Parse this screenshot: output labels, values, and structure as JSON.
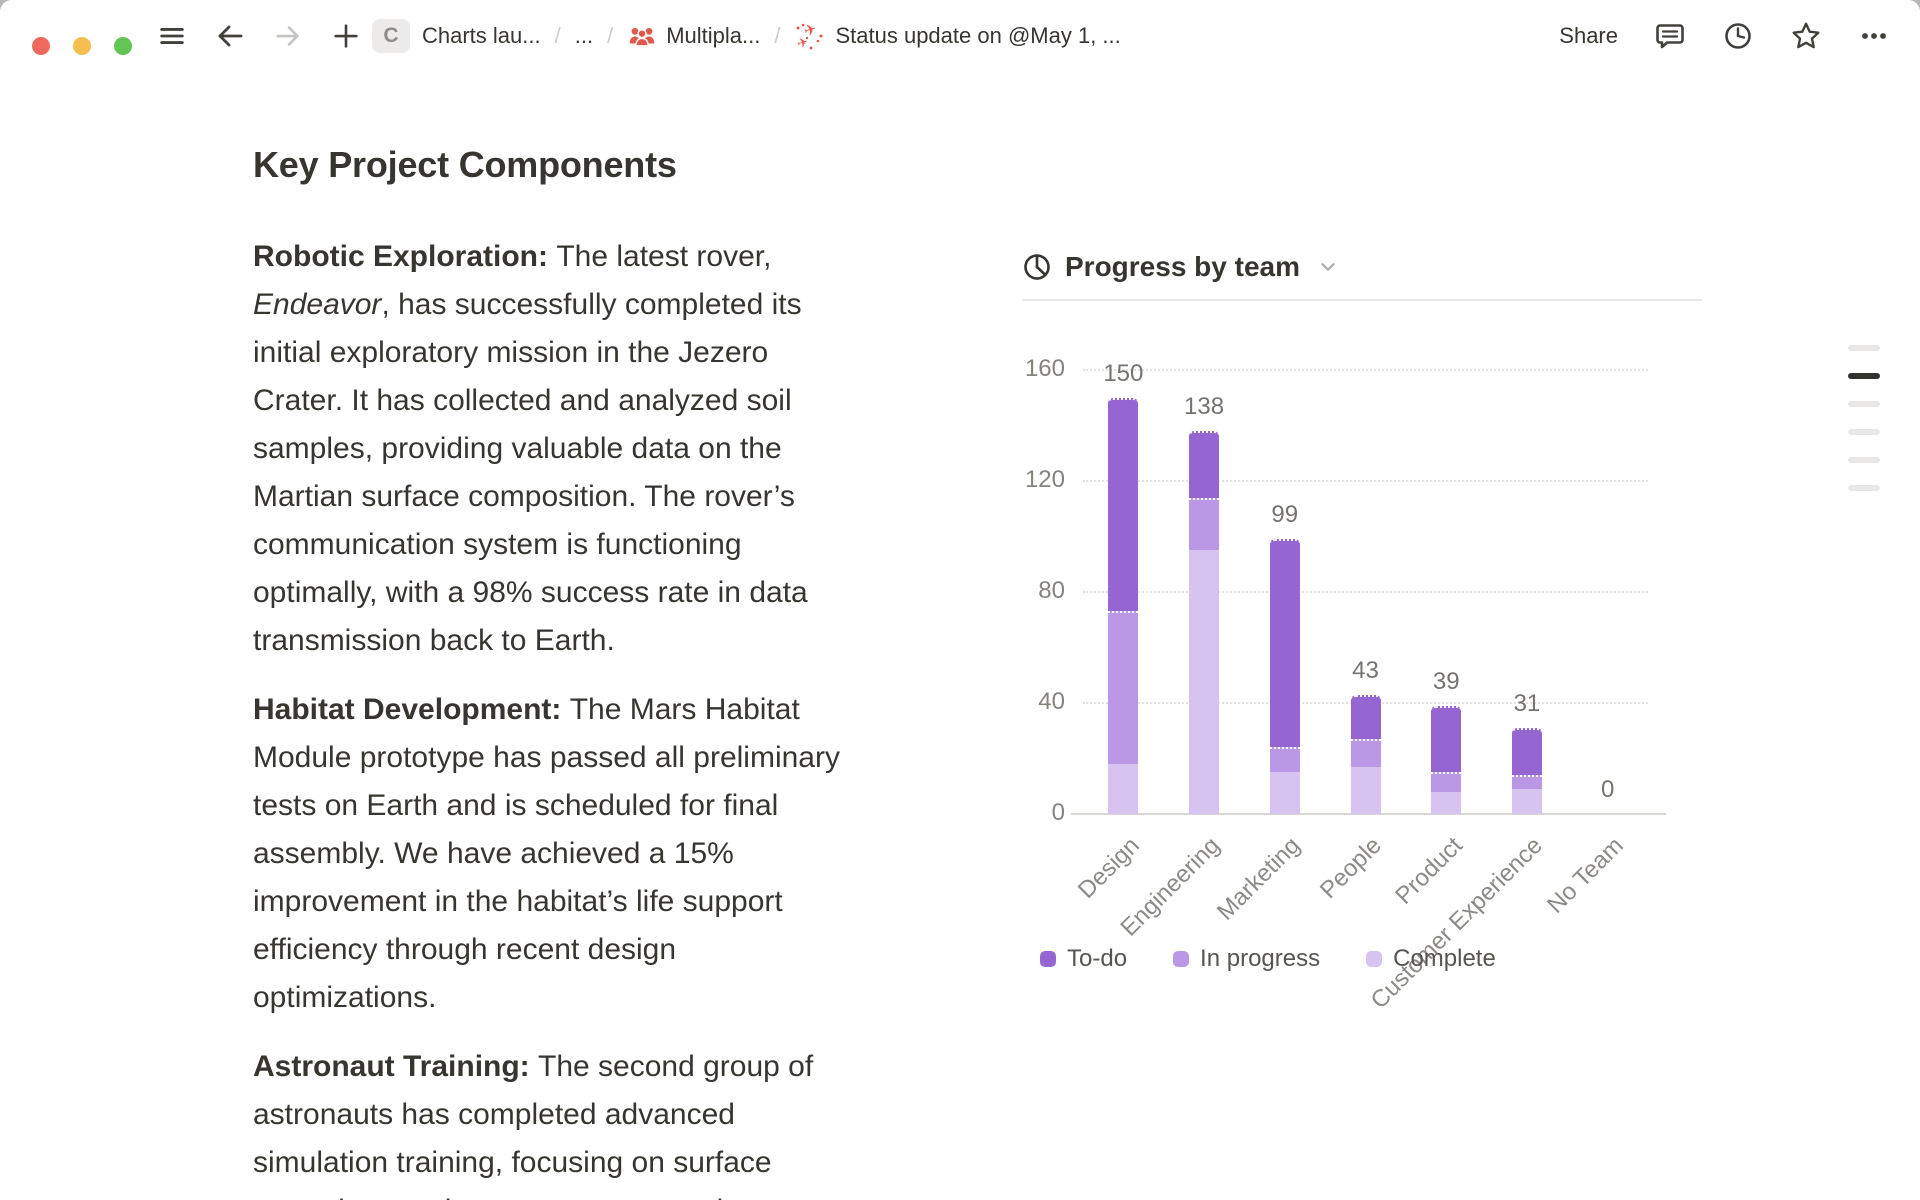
{
  "titlebar": {
    "traffic_lights": [
      "#ee6a5f",
      "#f5bf4f",
      "#62c554"
    ],
    "workspace_initial": "C",
    "breadcrumb": {
      "workspace": "Charts lau...",
      "collapsed": "...",
      "parent": "Multipla...",
      "page": "Status update on @May 1, ...",
      "separator": "/"
    },
    "share_label": "Share",
    "icon_color": "#42403b",
    "disabled_icon_color": "#c6c4c0",
    "accent_red": "#e2574c"
  },
  "document": {
    "title": "Key Project Components",
    "paragraphs": {
      "robotic": {
        "lead": "Robotic Exploration: ",
        "pre": "The latest rover, ",
        "italic": "Endeavor",
        "rest": ", has successfully completed its initial exploratory mission in the Jezero Crater. It has collected and analyzed soil samples, providing valuable data on the Martian surface composition. The rover’s communication system is functioning optimally, with a 98% success rate in data transmission back to Earth."
      },
      "habitat": {
        "lead": "Habitat Development: ",
        "rest": "The Mars Habitat Module prototype has passed all preliminary tests on Earth and is scheduled for final assembly. We have achieved a 15% improvement in the habitat’s life support efficiency through recent design optimizations."
      },
      "astronaut": {
        "lead": "Astronaut Training: ",
        "rest": "The second group of astronauts has completed advanced simulation training, focusing on surface operations and emergency protocols."
      }
    }
  },
  "chart_data": {
    "type": "bar",
    "stacked": true,
    "title": "Progress by team",
    "categories": [
      "Design",
      "Engineering",
      "Marketing",
      "People",
      "Product",
      "Customer Experience",
      "No Team"
    ],
    "totals": [
      150,
      138,
      99,
      43,
      39,
      31,
      0
    ],
    "series": [
      {
        "name": "Complete",
        "color": "#d7c3f0",
        "values": [
          18,
          95,
          15,
          17,
          8,
          9,
          0
        ]
      },
      {
        "name": "In progress",
        "color": "#bb98e6",
        "values": [
          55,
          19,
          9,
          10,
          7,
          5,
          0
        ]
      },
      {
        "name": "To-do",
        "color": "#9565d2",
        "values": [
          77,
          24,
          75,
          16,
          24,
          17,
          0
        ]
      }
    ],
    "legend_order": [
      "To-do",
      "In progress",
      "Complete"
    ],
    "yticks": [
      0,
      40,
      80,
      120,
      160
    ],
    "ylim": [
      0,
      160
    ],
    "grid": "dotted horizontal",
    "legend_position": "bottom"
  },
  "outline": {
    "segment_count": 6,
    "active_index": 1
  }
}
